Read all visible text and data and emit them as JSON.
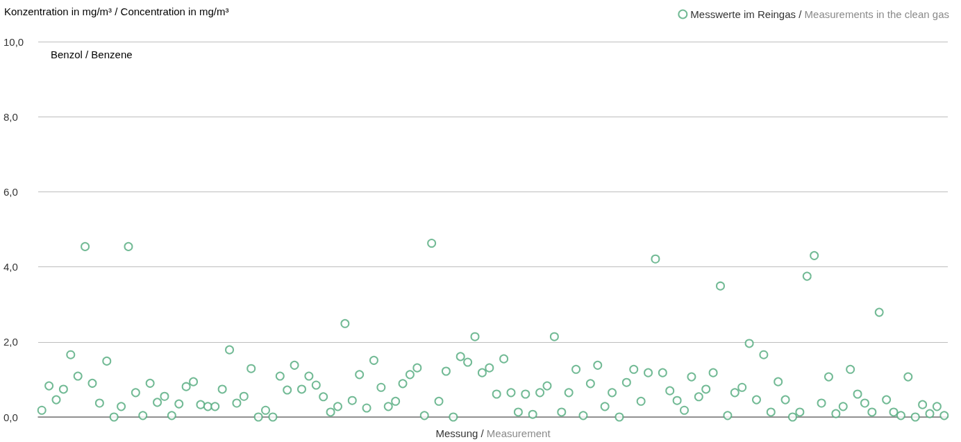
{
  "chart_data": {
    "type": "scatter",
    "ylabel": "Konzentration in mg/m³ / Concentration in mg/m³",
    "xlabel": "Messung / Measurement",
    "annotations": [
      "Benzol / Benzene"
    ],
    "categories": [
      null,
      null,
      null,
      null,
      null,
      null,
      null,
      null,
      null,
      null,
      null,
      null,
      null,
      null,
      null,
      null,
      null,
      null,
      null,
      null,
      null,
      null,
      null,
      null,
      null,
      null,
      null,
      null,
      null,
      null,
      null,
      null,
      null,
      null,
      null,
      null,
      null,
      null,
      null,
      null,
      null,
      null,
      null,
      null,
      null,
      null,
      null,
      null,
      null,
      null,
      null,
      null,
      null,
      null,
      null,
      null,
      null,
      null,
      null,
      null,
      null,
      null,
      null,
      null,
      null,
      null,
      null,
      null,
      null,
      null,
      null,
      null,
      null,
      null,
      null,
      null,
      null,
      null,
      null,
      null,
      null,
      null,
      null,
      null,
      null,
      null,
      null,
      null,
      null,
      null,
      null,
      null,
      null,
      null,
      null,
      null,
      null,
      null,
      null,
      null,
      null,
      null,
      null,
      null,
      null,
      null,
      null,
      null,
      null,
      null,
      null,
      null,
      null,
      null,
      null,
      null,
      null,
      null,
      null,
      null,
      null,
      null,
      null,
      null,
      null,
      null
    ],
    "series": [
      {
        "name": "Messwerte im Reingas / Measurements in the clean gas",
        "color": "#4fa97a",
        "values": [
          0.18,
          0.83,
          0.46,
          0.74,
          1.66,
          1.09,
          4.54,
          0.9,
          0.37,
          1.49,
          0,
          0.28,
          4.54,
          0.65,
          0.04,
          0.9,
          0.39,
          0.55,
          0.04,
          0.35,
          0.81,
          0.94,
          0.33,
          0.28,
          0.28,
          0.74,
          1.79,
          0.37,
          0.55,
          1.29,
          0,
          0.18,
          0,
          1.09,
          0.72,
          1.38,
          0.74,
          1.09,
          0.85,
          0.54,
          0.13,
          0.28,
          2.49,
          0.44,
          1.13,
          0.24,
          1.51,
          0.79,
          0.28,
          0.42,
          0.89,
          1.13,
          1.31,
          0.04,
          4.63,
          0.42,
          1.22,
          0,
          1.61,
          1.46,
          2.14,
          1.18,
          1.31,
          0.61,
          1.55,
          0.65,
          0.13,
          0.61,
          0.07,
          0.65,
          0.83,
          2.14,
          0.13,
          0.65,
          1.27,
          0.04,
          0.89,
          1.38,
          0.28,
          0.65,
          0,
          0.92,
          1.27,
          0.42,
          1.18,
          4.21,
          1.18,
          0.7,
          0.44,
          0.18,
          1.07,
          0.54,
          0.74,
          1.18,
          3.49,
          0.04,
          0.65,
          0.79,
          1.96,
          0.46,
          1.66,
          0.13,
          0.94,
          0.46,
          0,
          0.13,
          3.75,
          4.3,
          0.37,
          1.07,
          0.09,
          0.28,
          1.27,
          0.61,
          0.37,
          0.13,
          2.79,
          0.46,
          0.13,
          0.04,
          1.07,
          0,
          0.33,
          0.09,
          0.28,
          0.04
        ]
      }
    ],
    "ylim": [
      0,
      10
    ],
    "yticks": [
      {
        "value": 0,
        "label": "0,0"
      },
      {
        "value": 2,
        "label": "2,0"
      },
      {
        "value": 4,
        "label": "4,0"
      },
      {
        "value": 6,
        "label": "6,0"
      },
      {
        "value": 8,
        "label": "8,0"
      },
      {
        "value": 10,
        "label": "10,0"
      }
    ],
    "grid": "y",
    "legend": "top right",
    "marker": "circle"
  }
}
